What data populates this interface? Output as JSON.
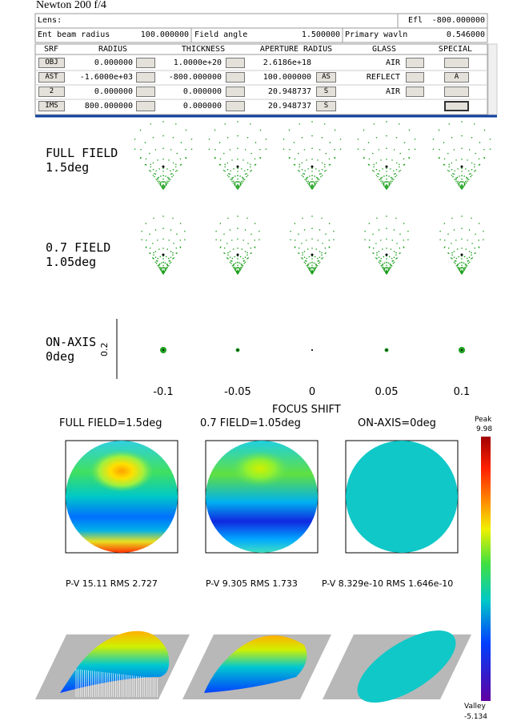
{
  "window": {
    "title": "Newton 200 f/4"
  },
  "lens_header": {
    "lens_label": "Lens:",
    "efl_label": "Efl",
    "efl_value": "-800.000000",
    "ent_beam_label": "Ent beam radius",
    "ent_beam_value": "100.000000",
    "field_angle_label": "Field angle",
    "field_angle_value": "1.500000",
    "wavln_label": "Primary wavln",
    "wavln_value": "0.546000"
  },
  "table": {
    "columns": [
      "SRF",
      "RADIUS",
      "THICKNESS",
      "APERTURE RADIUS",
      "GLASS",
      "SPECIAL"
    ],
    "rows": [
      {
        "srf": "OBJ",
        "radius": "0.000000",
        "thickness": "1.0000e+20",
        "aperture": "2.6186e+18",
        "glass": "AIR"
      },
      {
        "srf": "AST",
        "radius": "-1.6000e+03",
        "thickness": "-800.000000",
        "aperture": "100.000000",
        "aperture_flag": "AS",
        "glass": "REFLECT",
        "special": "A"
      },
      {
        "srf": "2",
        "radius": "0.000000",
        "thickness": "0.000000",
        "aperture": "20.948737",
        "aperture_flag": "S",
        "glass": "AIR"
      },
      {
        "srf": "IMS",
        "radius": "800.000000",
        "thickness": "0.000000",
        "aperture": "20.948737",
        "aperture_flag": "S"
      }
    ]
  },
  "spot_diagram": {
    "rows": [
      {
        "name": "FULL FIELD",
        "angle": "1.5deg"
      },
      {
        "name": "0.7 FIELD",
        "angle": "1.05deg"
      },
      {
        "name": "ON-AXIS",
        "angle": "0deg"
      }
    ],
    "scale_label": "0.2",
    "x_ticks": [
      "-0.1",
      "-0.05",
      "0",
      "0.05",
      "0.1"
    ],
    "x_label": "FOCUS SHIFT"
  },
  "wavefront": {
    "titles": [
      "FULL FIELD=1.5deg",
      "0.7 FIELD=1.05deg",
      "ON-AXIS=0deg"
    ],
    "stats": [
      "P-V 15.11 RMS 2.727",
      "P-V 9.305 RMS 1.733",
      "P-V 8.329e-10 RMS 1.646e-10"
    ],
    "peak_label": "Peak",
    "peak_value": "9.98",
    "valley_label": "Valley",
    "valley_value": "-5.134"
  }
}
